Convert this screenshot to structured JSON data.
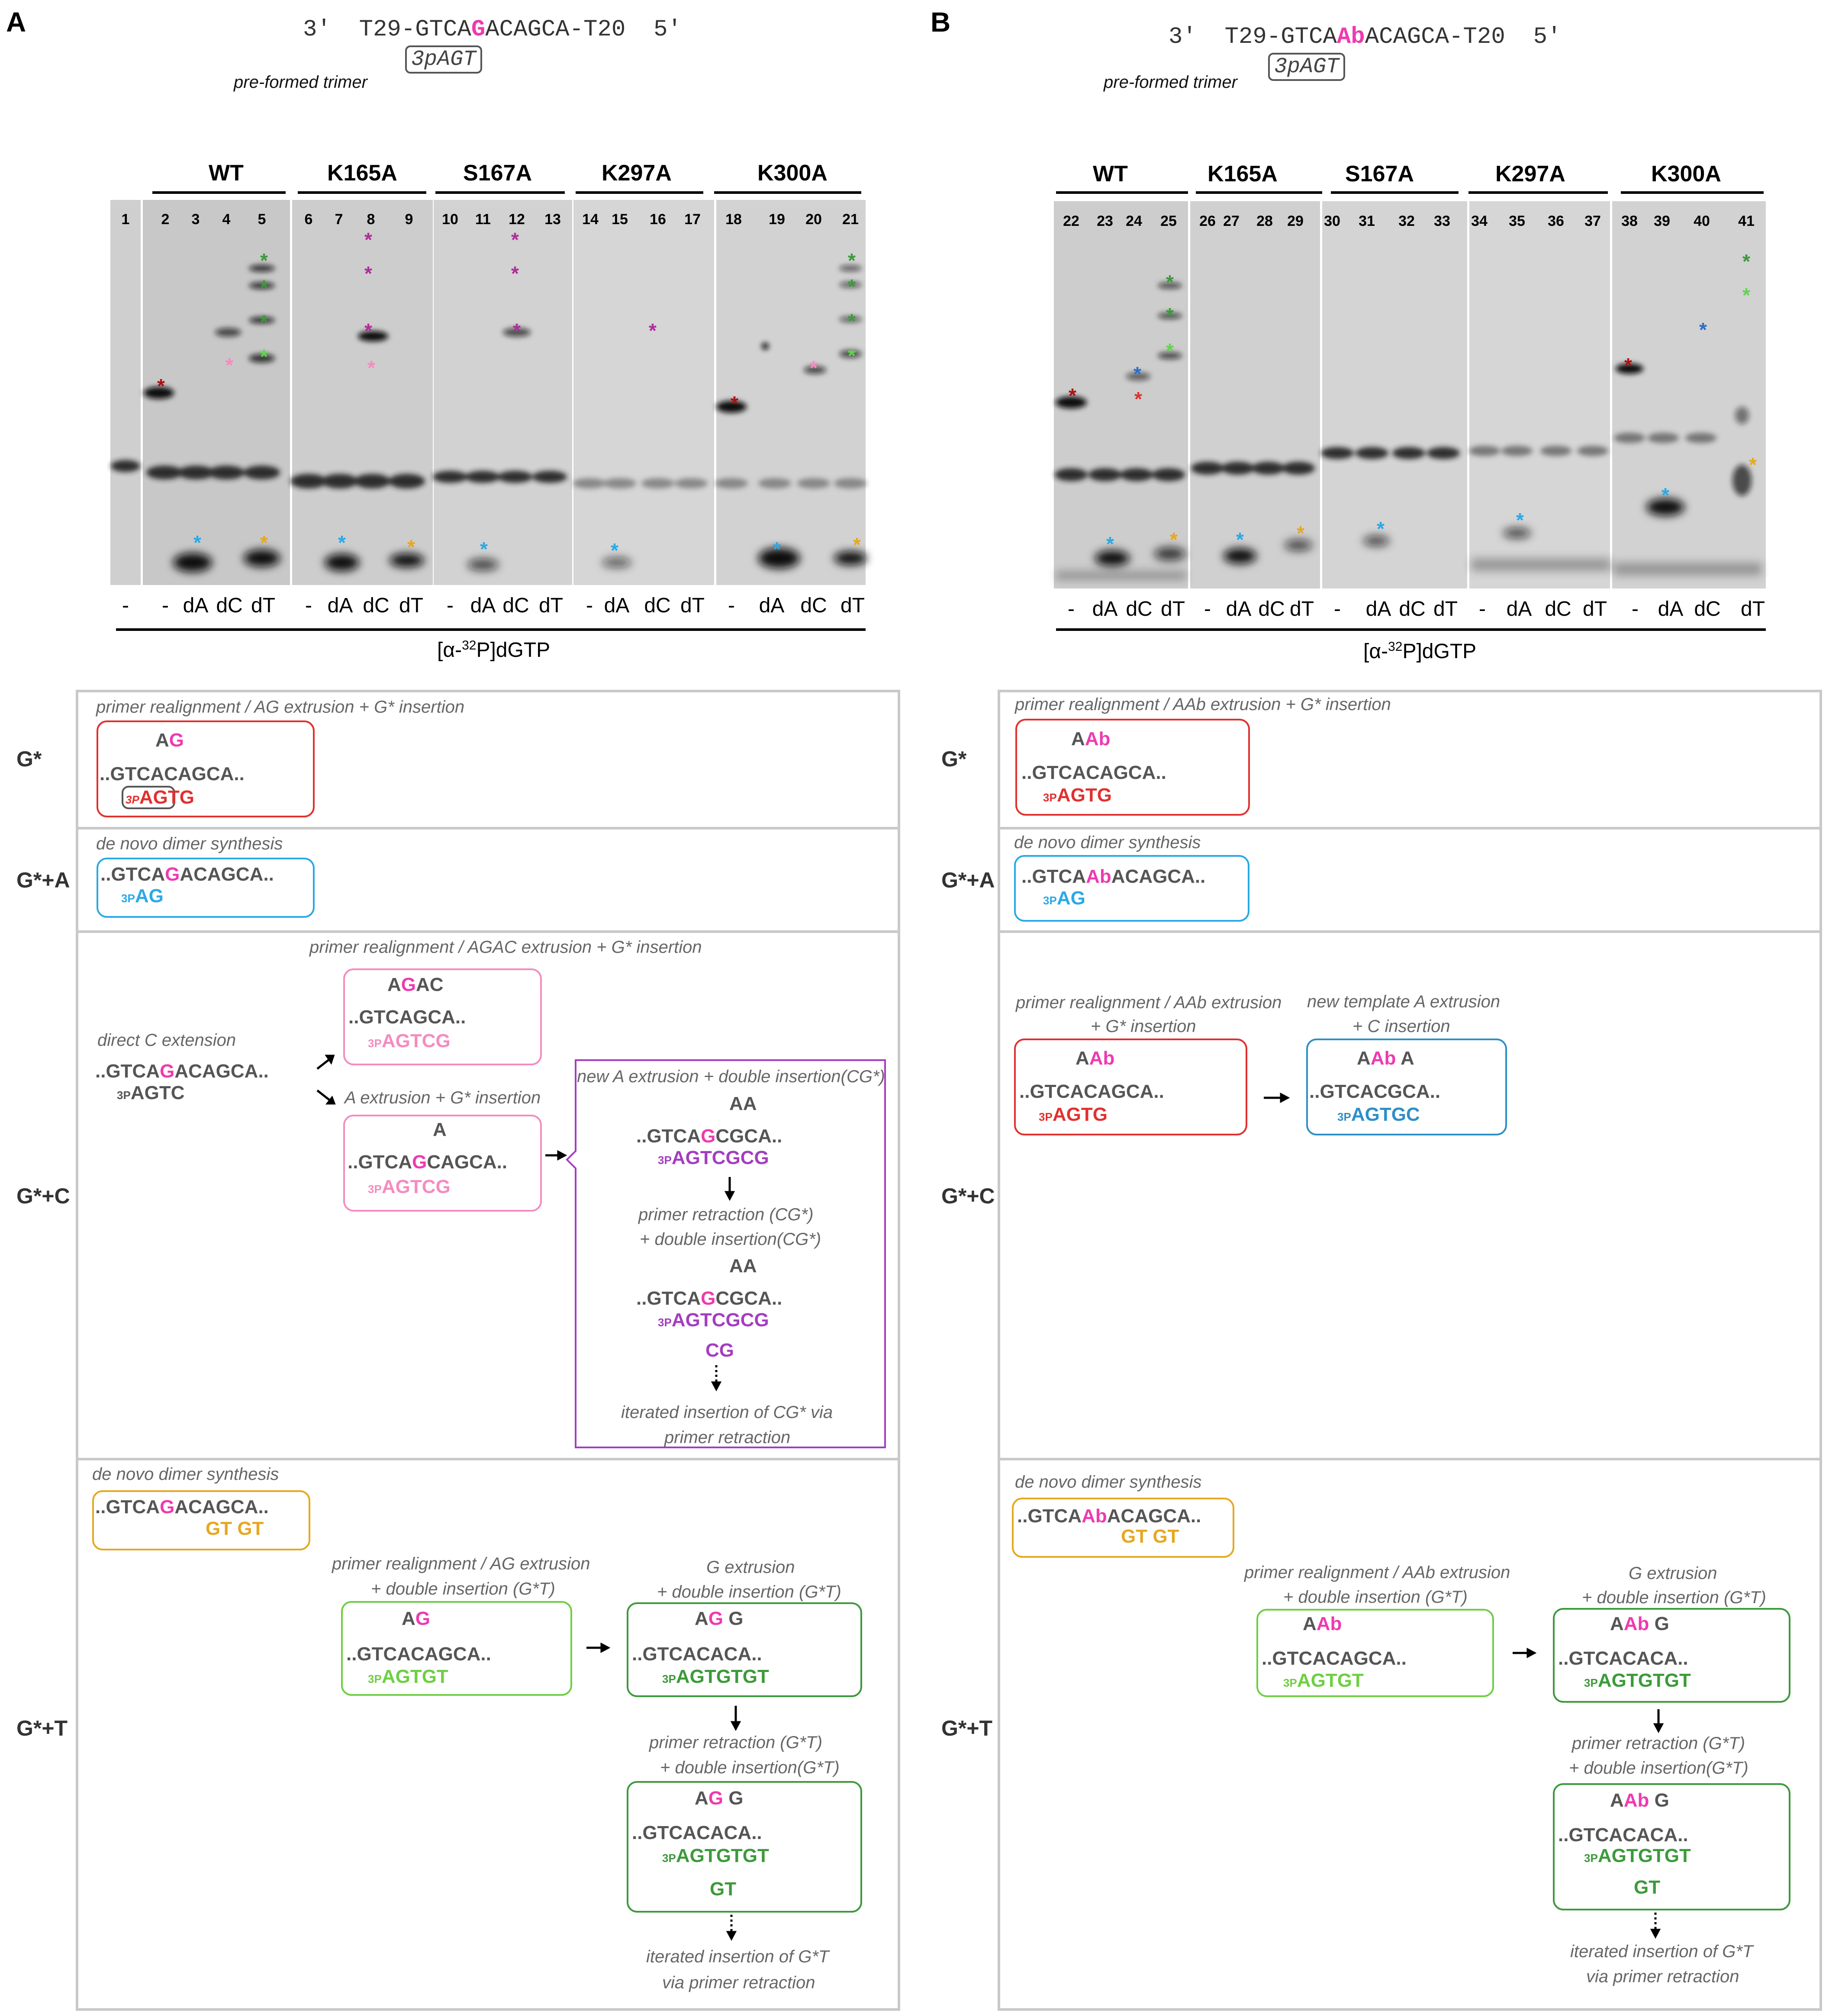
{
  "colors": {
    "magenta": "#ee3ab0",
    "red": "#e0312f",
    "darkred": "#b01010",
    "blue": "#2aa9e6",
    "teal": "#2d8fc8",
    "pink": "#f48cc0",
    "purple": "#a43dc0",
    "green": "#3c9a3a",
    "lightgreen": "#6ecf43",
    "gold": "#e6a821",
    "gray": "#666666"
  },
  "panelA": {
    "letter": "A",
    "template": {
      "p3": "3′",
      "left": "T29-GTCA",
      "mod": "G",
      "right": "ACAGCA-T20",
      "p5": "5′"
    },
    "trimer": "3pAGT",
    "trimer_label": "pre-formed trimer",
    "groups": [
      "WT",
      "K165A",
      "S167A",
      "K297A",
      "K300A"
    ],
    "lanes": [
      "1",
      "2",
      "3",
      "4",
      "5",
      "6",
      "7",
      "8",
      "9",
      "10",
      "11",
      "12",
      "13",
      "14",
      "15",
      "16",
      "17",
      "18",
      "19",
      "20",
      "21"
    ],
    "nucs": [
      "-",
      "-",
      "dA",
      "dC",
      "dT",
      "-",
      "dA",
      "dC",
      "dT",
      "-",
      "dA",
      "dC",
      "dT",
      "-",
      "dA",
      "dC",
      "dT",
      "-",
      "dA",
      "dC",
      "dT"
    ],
    "label_pre": "[α-",
    "label_sup": "32",
    "label_post": "P]dGTP"
  },
  "panelB": {
    "letter": "B",
    "template": {
      "p3": "3′",
      "left": "T29-GTCA",
      "mod": "Ab",
      "right": "ACAGCA-T20",
      "p5": "5′"
    },
    "trimer": "3pAGT",
    "trimer_label": "pre-formed trimer",
    "groups": [
      "WT",
      "K165A",
      "S167A",
      "K297A",
      "K300A"
    ],
    "lanes": [
      "22",
      "23",
      "24",
      "25",
      "26",
      "27",
      "28",
      "29",
      "30",
      "31",
      "32",
      "33",
      "34",
      "35",
      "36",
      "37",
      "38",
      "39",
      "40",
      "41"
    ],
    "nucs": [
      "-",
      "dA",
      "dC",
      "dT",
      "-",
      "dA",
      "dC",
      "dT",
      "-",
      "dA",
      "dC",
      "dT",
      "-",
      "dA",
      "dC",
      "dT",
      "-",
      "dA",
      "dC",
      "dT"
    ],
    "label_pre": "[α-",
    "label_sup": "32",
    "label_post": "P]dGTP"
  },
  "rows": [
    "G*",
    "G*+A",
    "G*+C",
    "G*+T"
  ],
  "A_scheme": {
    "r1_title": "primer realignment / AG extrusion + G* insertion",
    "r2_title": "de novo dimer synthesis",
    "r3_title": "primer realignment / AGAC extrusion + G* insertion",
    "r3_direct": "direct C extension",
    "r3_aext": "A extrusion + G* insertion",
    "r3_newa": "new A extrusion + double insertion(CG*)",
    "r3_retract1": "primer retraction (CG*)",
    "r3_retract2": "+ double insertion(CG*)",
    "r3_iter1": "iterated insertion of CG* via",
    "r3_iter2": "primer retraction",
    "r4_title": "de novo dimer synthesis",
    "r4_realign1": "primer realignment / AG extrusion",
    "r4_realign2": "+ double insertion (G*T)",
    "r4_gext1": "G extrusion",
    "r4_gext2": "+ double insertion (G*T)",
    "r4_retract1": "primer retraction (G*T)",
    "r4_retract2": "+ double insertion(G*T)",
    "r4_iter1": "iterated insertion of G*T",
    "r4_iter2": "via primer retraction"
  },
  "B_scheme": {
    "r1_title": "primer realignment / AAb extrusion + G* insertion",
    "r2_title": "de novo dimer synthesis",
    "r3_realign1": "primer realignment / AAb  extrusion",
    "r3_realign2": "+ G* insertion",
    "r3_newt1": "new template A extrusion",
    "r3_newt2": "+ C insertion",
    "r4_title": "de novo dimer synthesis",
    "r4_realign1": "primer realignment / AAb extrusion",
    "r4_realign2": "+ double insertion (G*T)",
    "r4_gext1": "G extrusion",
    "r4_gext2": "+ double insertion (G*T)",
    "r4_retract1": "primer retraction (G*T)",
    "r4_retract2": "+ double insertion(G*T)",
    "r4_iter1": "iterated insertion of G*T",
    "r4_iter2": "via primer retraction"
  }
}
